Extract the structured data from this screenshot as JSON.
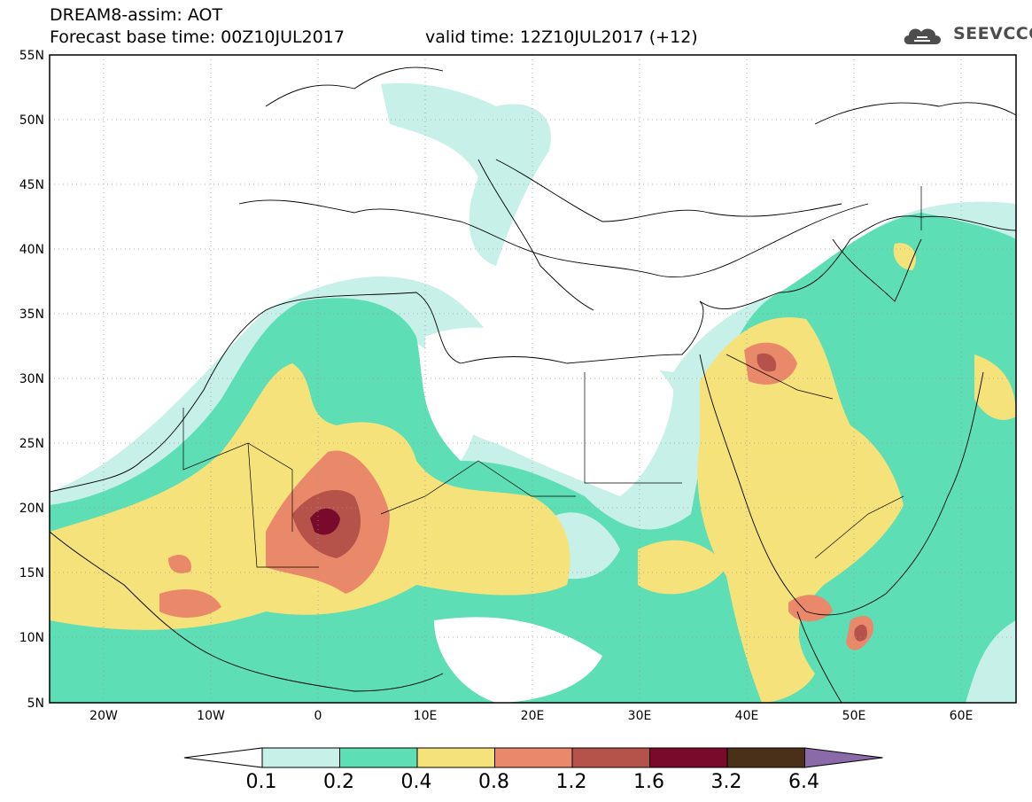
{
  "header": {
    "line1": "DREAM8-assim: AOT",
    "line2": "Forecast base time: 00Z10JUL2017",
    "valid": "valid time: 12Z10JUL2017 (+12)"
  },
  "logo": {
    "text": "SEEVCCC",
    "icon": "cloud-icon"
  },
  "map": {
    "lat_labels": [
      "55N",
      "50N",
      "45N",
      "40N",
      "35N",
      "30N",
      "25N",
      "20N",
      "15N",
      "10N",
      "5N"
    ],
    "lon_labels": [
      "20W",
      "10W",
      "0",
      "10E",
      "20E",
      "30E",
      "40E",
      "50E",
      "60E"
    ],
    "lat_range": [
      5,
      55
    ],
    "lon_range": [
      -25,
      65
    ],
    "grid": "dotted",
    "field": "AOT"
  },
  "colorbar": {
    "levels": [
      "0.1",
      "0.2",
      "0.4",
      "0.8",
      "1.2",
      "1.6",
      "3.2",
      "6.4"
    ],
    "colors": [
      "#ffffff",
      "#c6f0e8",
      "#5ddeb4",
      "#f6e27a",
      "#e9896a",
      "#b5534a",
      "#7a0a2c",
      "#4a3018",
      "#8a6aa8"
    ]
  }
}
